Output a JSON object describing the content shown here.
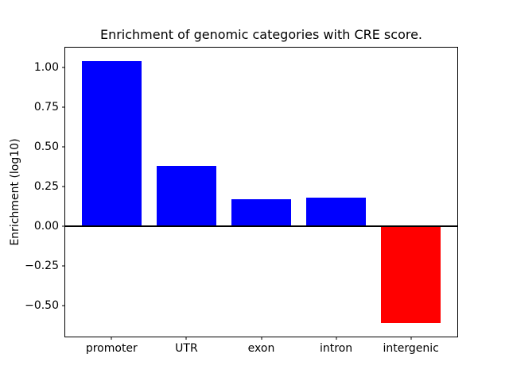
{
  "chart_data": {
    "type": "bar",
    "title": "Enrichment of genomic categories with CRE score.",
    "xlabel": "",
    "ylabel": "Enrichment (log10)",
    "categories": [
      "promoter",
      "UTR",
      "exon",
      "intron",
      "intergenic"
    ],
    "values": [
      1.04,
      0.38,
      0.17,
      0.18,
      -0.61
    ],
    "bar_colors": [
      "#0000ff",
      "#0000ff",
      "#0000ff",
      "#0000ff",
      "#ff0000"
    ],
    "positive_color": "#0000ff",
    "negative_color": "#ff0000",
    "yticks": [
      {
        "value": 1.0,
        "label": "1.00"
      },
      {
        "value": 0.75,
        "label": "0.75"
      },
      {
        "value": 0.5,
        "label": "0.50"
      },
      {
        "value": 0.25,
        "label": "0.25"
      },
      {
        "value": 0.0,
        "label": "0.00"
      },
      {
        "value": -0.25,
        "label": "−0.25"
      },
      {
        "value": -0.5,
        "label": "−0.50"
      }
    ],
    "ylim": [
      -0.695,
      1.125
    ],
    "xlim": [
      -0.62,
      4.62
    ],
    "bar_width": 0.8,
    "zero_line": true,
    "grid": false,
    "legend": null
  }
}
